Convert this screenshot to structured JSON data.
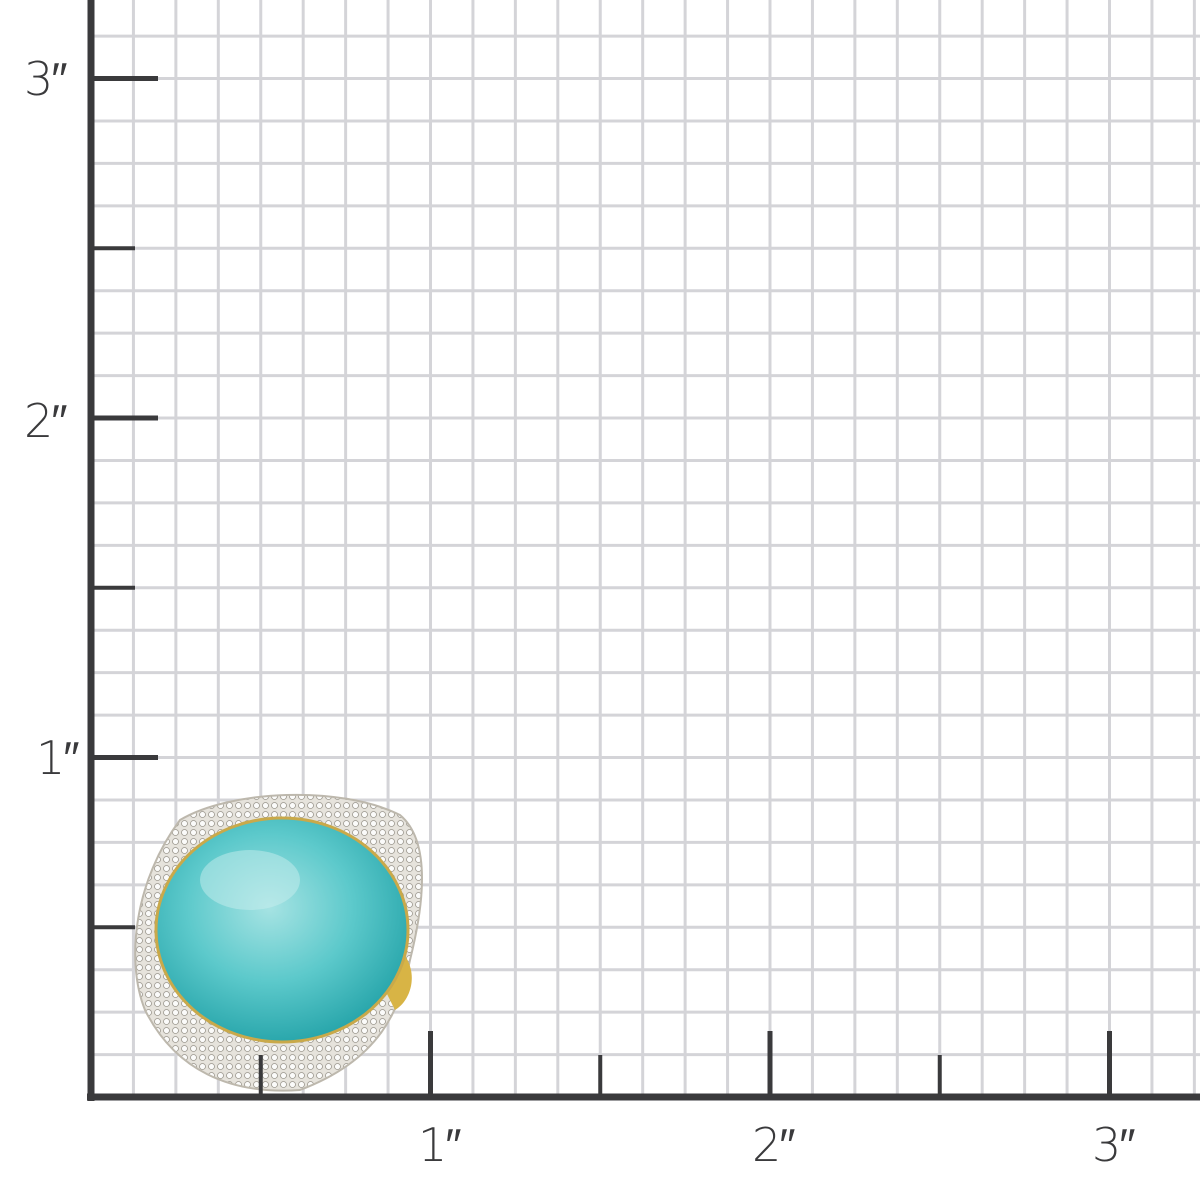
{
  "ruler": {
    "unit_symbol": "″",
    "x_labels": [
      "1″",
      "2″",
      "3″"
    ],
    "y_labels": [
      "1″",
      "2″",
      "3″"
    ],
    "minor_divisions_per_inch": 8
  },
  "colors": {
    "axis": "#3a3a3c",
    "grid": "#d4d4d8",
    "stone": "#4fc3c6",
    "metal": "#d9d6cf",
    "gold": "#d8b445"
  },
  "product": {
    "type": "turquoise cabochon ring with diamond halo"
  }
}
